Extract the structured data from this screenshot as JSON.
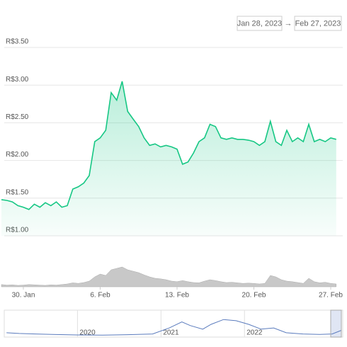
{
  "date_range": {
    "from": "Jan 28, 2023",
    "arrow": "→",
    "to": "Feb 27, 2023"
  },
  "chart_data": [
    {
      "type": "area",
      "x": [
        0,
        0.5,
        1,
        1.5,
        2,
        2.5,
        3,
        3.5,
        4,
        4.5,
        5,
        5.5,
        6,
        6.5,
        7,
        7.5,
        8,
        8.5,
        9,
        9.5,
        10,
        10.5,
        11,
        11.5,
        12,
        12.5,
        13,
        13.5,
        14,
        14.5,
        15,
        15.5,
        16,
        16.5,
        17,
        17.5,
        18,
        18.5,
        19,
        19.5,
        20,
        20.5,
        21,
        21.5,
        22,
        22.5,
        23,
        23.5,
        24,
        24.5,
        25,
        25.5,
        26,
        26.5,
        27,
        27.5,
        28,
        28.5,
        29,
        29.5,
        30,
        30.5
      ],
      "values": [
        1.48,
        1.47,
        1.45,
        1.4,
        1.38,
        1.35,
        1.42,
        1.38,
        1.44,
        1.4,
        1.45,
        1.38,
        1.4,
        1.62,
        1.65,
        1.7,
        1.8,
        2.25,
        2.3,
        2.4,
        2.9,
        2.8,
        3.05,
        2.65,
        2.55,
        2.45,
        2.3,
        2.2,
        2.22,
        2.18,
        2.2,
        2.18,
        2.15,
        1.95,
        1.98,
        2.1,
        2.25,
        2.3,
        2.48,
        2.45,
        2.3,
        2.28,
        2.3,
        2.28,
        2.28,
        2.27,
        2.25,
        2.2,
        2.25,
        2.52,
        2.25,
        2.2,
        2.4,
        2.25,
        2.3,
        2.25,
        2.48,
        2.25,
        2.28,
        2.25,
        2.3,
        2.28
      ],
      "color": "#16c784",
      "volume": [
        8,
        6,
        7,
        5,
        6,
        8,
        7,
        6,
        5,
        7,
        6,
        8,
        10,
        14,
        12,
        15,
        20,
        35,
        45,
        40,
        60,
        65,
        70,
        60,
        55,
        50,
        42,
        35,
        30,
        28,
        25,
        20,
        18,
        22,
        18,
        15,
        14,
        20,
        25,
        22,
        18,
        15,
        16,
        14,
        12,
        13,
        12,
        10,
        12,
        40,
        35,
        25,
        20,
        18,
        15,
        12,
        30,
        18,
        14,
        16,
        12,
        10
      ],
      "volume_lim": [
        0,
        100
      ],
      "volume_color": "#c8c8c8",
      "xlim": [
        0,
        31
      ],
      "xticks": [
        {
          "value": 2,
          "label": "30. Jan"
        },
        {
          "value": 9,
          "label": "6. Feb"
        },
        {
          "value": 16,
          "label": "13. Feb"
        },
        {
          "value": 23,
          "label": "20. Feb"
        },
        {
          "value": 30,
          "label": "27. Feb"
        }
      ],
      "ylim": [
        1,
        3.5
      ],
      "yticks": [
        {
          "value": 3.5,
          "label": "R$3.50"
        },
        {
          "value": 3,
          "label": "R$3.00"
        },
        {
          "value": 2.5,
          "label": "R$2.50"
        },
        {
          "value": 2,
          "label": "R$2.00"
        },
        {
          "value": 1.5,
          "label": "R$1.50"
        },
        {
          "value": 1,
          "label": "R$1.00"
        }
      ],
      "grid": true
    },
    {
      "type": "line",
      "x": [
        2019.15,
        2019.3,
        2019.5,
        2019.7,
        2020,
        2020.3,
        2020.6,
        2020.9,
        2021.1,
        2021.25,
        2021.35,
        2021.5,
        2021.6,
        2021.75,
        2021.9,
        2022.05,
        2022.2,
        2022.35,
        2022.5,
        2022.7,
        2022.9,
        2023.05,
        2023.16
      ],
      "values": [
        0.15,
        0.12,
        0.1,
        0.08,
        0.06,
        0.05,
        0.07,
        0.1,
        0.35,
        0.6,
        0.45,
        0.3,
        0.5,
        0.7,
        0.65,
        0.5,
        0.3,
        0.35,
        0.15,
        0.1,
        0.08,
        0.1,
        0.25
      ],
      "color": "#5a7bbd",
      "xlim": [
        2019.14,
        2023.16
      ],
      "xticks": [
        2020,
        2021,
        2022
      ],
      "ylim": [
        0,
        1
      ],
      "grid": true
    }
  ]
}
